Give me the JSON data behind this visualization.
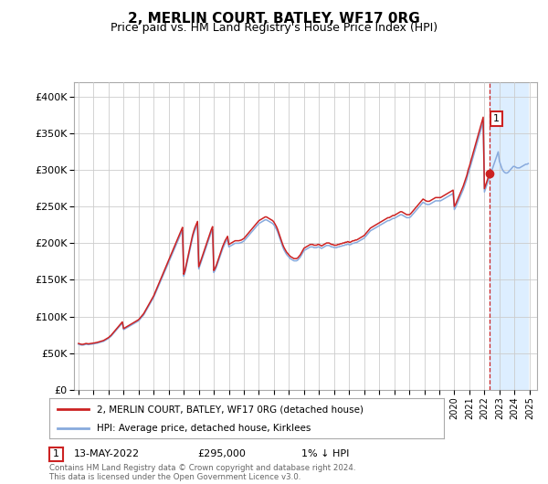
{
  "title": "2, MERLIN COURT, BATLEY, WF17 0RG",
  "subtitle": "Price paid vs. HM Land Registry's House Price Index (HPI)",
  "title_fontsize": 11,
  "subtitle_fontsize": 9,
  "ylim": [
    0,
    420000
  ],
  "yticks": [
    0,
    50000,
    100000,
    150000,
    200000,
    250000,
    300000,
    350000,
    400000
  ],
  "ytick_labels": [
    "£0",
    "£50K",
    "£100K",
    "£150K",
    "£200K",
    "£250K",
    "£300K",
    "£350K",
    "£400K"
  ],
  "xtick_years": [
    1995,
    1996,
    1997,
    1998,
    1999,
    2000,
    2001,
    2002,
    2003,
    2004,
    2005,
    2006,
    2007,
    2008,
    2009,
    2010,
    2011,
    2012,
    2013,
    2014,
    2015,
    2016,
    2017,
    2018,
    2019,
    2020,
    2021,
    2022,
    2023,
    2024,
    2025
  ],
  "hpi_line_color": "#88aadd",
  "price_line_color": "#cc2222",
  "marker_color": "#cc2222",
  "vline_color": "#cc2222",
  "shade_color": "#ddeeff",
  "sale_date_num": 2022.37,
  "sale_price": 295000,
  "sale_label": "1",
  "legend_label_price": "2, MERLIN COURT, BATLEY, WF17 0RG (detached house)",
  "legend_label_hpi": "HPI: Average price, detached house, Kirklees",
  "footnote_label": "1",
  "footnote_date": "13-MAY-2022",
  "footnote_price": "£295,000",
  "footnote_hpi": "1% ↓ HPI",
  "copyright_text": "Contains HM Land Registry data © Crown copyright and database right 2024.\nThis data is licensed under the Open Government Licence v3.0.",
  "background_color": "#ffffff",
  "grid_color": "#cccccc",
  "hpi_data_x": [
    1995.0,
    1995.083,
    1995.167,
    1995.25,
    1995.333,
    1995.417,
    1995.5,
    1995.583,
    1995.667,
    1995.75,
    1995.833,
    1995.917,
    1996.0,
    1996.083,
    1996.167,
    1996.25,
    1996.333,
    1996.417,
    1996.5,
    1996.583,
    1996.667,
    1996.75,
    1996.833,
    1996.917,
    1997.0,
    1997.083,
    1997.167,
    1997.25,
    1997.333,
    1997.417,
    1997.5,
    1997.583,
    1997.667,
    1997.75,
    1997.833,
    1997.917,
    1998.0,
    1998.083,
    1998.167,
    1998.25,
    1998.333,
    1998.417,
    1998.5,
    1998.583,
    1998.667,
    1998.75,
    1998.833,
    1998.917,
    1999.0,
    1999.083,
    1999.167,
    1999.25,
    1999.333,
    1999.417,
    1999.5,
    1999.583,
    1999.667,
    1999.75,
    1999.833,
    1999.917,
    2000.0,
    2000.083,
    2000.167,
    2000.25,
    2000.333,
    2000.417,
    2000.5,
    2000.583,
    2000.667,
    2000.75,
    2000.833,
    2000.917,
    2001.0,
    2001.083,
    2001.167,
    2001.25,
    2001.333,
    2001.417,
    2001.5,
    2001.583,
    2001.667,
    2001.75,
    2001.833,
    2001.917,
    2002.0,
    2002.083,
    2002.167,
    2002.25,
    2002.333,
    2002.417,
    2002.5,
    2002.583,
    2002.667,
    2002.75,
    2002.833,
    2002.917,
    2003.0,
    2003.083,
    2003.167,
    2003.25,
    2003.333,
    2003.417,
    2003.5,
    2003.583,
    2003.667,
    2003.75,
    2003.833,
    2003.917,
    2004.0,
    2004.083,
    2004.167,
    2004.25,
    2004.333,
    2004.417,
    2004.5,
    2004.583,
    2004.667,
    2004.75,
    2004.833,
    2004.917,
    2005.0,
    2005.083,
    2005.167,
    2005.25,
    2005.333,
    2005.417,
    2005.5,
    2005.583,
    2005.667,
    2005.75,
    2005.833,
    2005.917,
    2006.0,
    2006.083,
    2006.167,
    2006.25,
    2006.333,
    2006.417,
    2006.5,
    2006.583,
    2006.667,
    2006.75,
    2006.833,
    2006.917,
    2007.0,
    2007.083,
    2007.167,
    2007.25,
    2007.333,
    2007.417,
    2007.5,
    2007.583,
    2007.667,
    2007.75,
    2007.833,
    2007.917,
    2008.0,
    2008.083,
    2008.167,
    2008.25,
    2008.333,
    2008.417,
    2008.5,
    2008.583,
    2008.667,
    2008.75,
    2008.833,
    2008.917,
    2009.0,
    2009.083,
    2009.167,
    2009.25,
    2009.333,
    2009.417,
    2009.5,
    2009.583,
    2009.667,
    2009.75,
    2009.833,
    2009.917,
    2010.0,
    2010.083,
    2010.167,
    2010.25,
    2010.333,
    2010.417,
    2010.5,
    2010.583,
    2010.667,
    2010.75,
    2010.833,
    2010.917,
    2011.0,
    2011.083,
    2011.167,
    2011.25,
    2011.333,
    2011.417,
    2011.5,
    2011.583,
    2011.667,
    2011.75,
    2011.833,
    2011.917,
    2012.0,
    2012.083,
    2012.167,
    2012.25,
    2012.333,
    2012.417,
    2012.5,
    2012.583,
    2012.667,
    2012.75,
    2012.833,
    2012.917,
    2013.0,
    2013.083,
    2013.167,
    2013.25,
    2013.333,
    2013.417,
    2013.5,
    2013.583,
    2013.667,
    2013.75,
    2013.833,
    2013.917,
    2014.0,
    2014.083,
    2014.167,
    2014.25,
    2014.333,
    2014.417,
    2014.5,
    2014.583,
    2014.667,
    2014.75,
    2014.833,
    2014.917,
    2015.0,
    2015.083,
    2015.167,
    2015.25,
    2015.333,
    2015.417,
    2015.5,
    2015.583,
    2015.667,
    2015.75,
    2015.833,
    2015.917,
    2016.0,
    2016.083,
    2016.167,
    2016.25,
    2016.333,
    2016.417,
    2016.5,
    2016.583,
    2016.667,
    2016.75,
    2016.833,
    2016.917,
    2017.0,
    2017.083,
    2017.167,
    2017.25,
    2017.333,
    2017.417,
    2017.5,
    2017.583,
    2017.667,
    2017.75,
    2017.833,
    2017.917,
    2018.0,
    2018.083,
    2018.167,
    2018.25,
    2018.333,
    2018.417,
    2018.5,
    2018.583,
    2018.667,
    2018.75,
    2018.833,
    2018.917,
    2019.0,
    2019.083,
    2019.167,
    2019.25,
    2019.333,
    2019.417,
    2019.5,
    2019.583,
    2019.667,
    2019.75,
    2019.833,
    2019.917,
    2020.0,
    2020.083,
    2020.167,
    2020.25,
    2020.333,
    2020.417,
    2020.5,
    2020.583,
    2020.667,
    2020.75,
    2020.833,
    2020.917,
    2021.0,
    2021.083,
    2021.167,
    2021.25,
    2021.333,
    2021.417,
    2021.5,
    2021.583,
    2021.667,
    2021.75,
    2021.833,
    2021.917,
    2022.0,
    2022.083,
    2022.167,
    2022.25,
    2022.333,
    2022.417,
    2022.5,
    2022.583,
    2022.667,
    2022.75,
    2022.833,
    2022.917,
    2023.0,
    2023.083,
    2023.167,
    2023.25,
    2023.333,
    2023.417,
    2023.5,
    2023.583,
    2023.667,
    2023.75,
    2023.833,
    2023.917,
    2024.0,
    2024.083,
    2024.167,
    2024.25,
    2024.333,
    2024.417,
    2024.5,
    2024.583,
    2024.667,
    2024.75,
    2024.833,
    2024.917
  ],
  "hpi_data_y": [
    62000,
    61500,
    61000,
    60800,
    61000,
    61500,
    62000,
    61800,
    61500,
    61800,
    62000,
    62200,
    62500,
    62800,
    63000,
    63500,
    64000,
    64500,
    65000,
    65500,
    66000,
    67000,
    68000,
    69000,
    70000,
    71500,
    73000,
    75000,
    77000,
    79000,
    81000,
    83000,
    85000,
    87000,
    89000,
    91000,
    82000,
    83000,
    84000,
    85000,
    86000,
    87000,
    88000,
    89000,
    90000,
    91000,
    92000,
    93000,
    94000,
    96000,
    98000,
    100000,
    102000,
    105000,
    108000,
    111000,
    114000,
    117000,
    120000,
    123000,
    126000,
    130000,
    134000,
    138000,
    142000,
    146000,
    150000,
    154000,
    158000,
    162000,
    166000,
    170000,
    174000,
    178000,
    182000,
    186000,
    190000,
    194000,
    198000,
    202000,
    206000,
    210000,
    214000,
    218000,
    155000,
    160000,
    168000,
    176000,
    184000,
    192000,
    200000,
    207000,
    213000,
    218000,
    222000,
    226000,
    165000,
    170000,
    175000,
    180000,
    185000,
    190000,
    195000,
    200000,
    205000,
    210000,
    215000,
    219000,
    160000,
    163000,
    167000,
    172000,
    177000,
    182000,
    187000,
    192000,
    196000,
    200000,
    203000,
    206000,
    195000,
    196000,
    197000,
    198000,
    199000,
    200000,
    200000,
    200000,
    200000,
    200500,
    201000,
    202000,
    203000,
    205000,
    207000,
    209000,
    211000,
    213000,
    215000,
    217000,
    219000,
    221000,
    223000,
    225000,
    227000,
    228000,
    229000,
    230000,
    231000,
    232000,
    232000,
    231000,
    230000,
    229000,
    228000,
    227000,
    225000,
    222000,
    219000,
    215000,
    210000,
    205000,
    200000,
    195000,
    191000,
    188000,
    185000,
    183000,
    181000,
    179000,
    178000,
    177000,
    176000,
    176000,
    176000,
    177000,
    179000,
    181000,
    184000,
    187000,
    190000,
    191000,
    192000,
    193000,
    194000,
    195000,
    195000,
    195000,
    194000,
    194000,
    194000,
    195000,
    195000,
    194000,
    193000,
    194000,
    195000,
    196000,
    197000,
    197000,
    197000,
    196000,
    195000,
    195000,
    194000,
    194000,
    194000,
    195000,
    195000,
    196000,
    196000,
    197000,
    197000,
    198000,
    198000,
    199000,
    198000,
    198000,
    199000,
    200000,
    200000,
    201000,
    201000,
    202000,
    203000,
    204000,
    205000,
    206000,
    207000,
    209000,
    211000,
    213000,
    215000,
    217000,
    218000,
    219000,
    220000,
    221000,
    222000,
    223000,
    224000,
    225000,
    226000,
    227000,
    228000,
    229000,
    230000,
    231000,
    231000,
    232000,
    233000,
    234000,
    234000,
    235000,
    236000,
    237000,
    238000,
    239000,
    239000,
    238000,
    237000,
    236000,
    235000,
    235000,
    235000,
    236000,
    238000,
    240000,
    242000,
    244000,
    246000,
    248000,
    250000,
    252000,
    254000,
    256000,
    255000,
    254000,
    253000,
    253000,
    253000,
    254000,
    255000,
    256000,
    257000,
    258000,
    258000,
    258000,
    258000,
    258000,
    259000,
    260000,
    261000,
    262000,
    263000,
    264000,
    265000,
    266000,
    267000,
    268000,
    246000,
    249000,
    253000,
    257000,
    261000,
    265000,
    269000,
    273000,
    278000,
    283000,
    288000,
    295000,
    300000,
    306000,
    312000,
    318000,
    324000,
    330000,
    336000,
    342000,
    348000,
    354000,
    360000,
    366000,
    270000,
    275000,
    280000,
    285000,
    290000,
    295000,
    300000,
    305000,
    310000,
    315000,
    320000,
    325000,
    312000,
    307000,
    302000,
    299000,
    297000,
    296000,
    296000,
    297000,
    299000,
    301000,
    303000,
    305000,
    305000,
    304000,
    303000,
    303000,
    303000,
    304000,
    305000,
    306000,
    307000,
    308000,
    308000,
    309000
  ],
  "sale_marker_x": 2022.37,
  "sale_marker_y": 295000
}
